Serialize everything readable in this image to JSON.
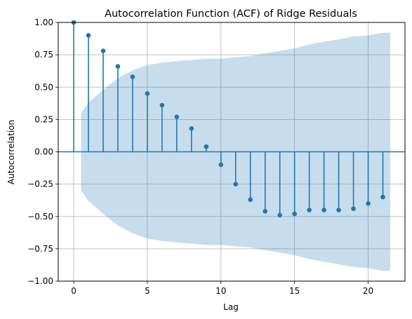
{
  "chart_data": {
    "type": "stem",
    "title": "Autocorrelation Function (ACF) of Ridge Residuals",
    "xlabel": "Lag",
    "ylabel": "Autocorrelation",
    "xlim": [
      -1.05,
      22.5
    ],
    "ylim": [
      -1.0,
      1.0
    ],
    "xticks": [
      0,
      5,
      10,
      15,
      20
    ],
    "yticks": [
      -1.0,
      -0.75,
      -0.5,
      -0.25,
      0.0,
      0.25,
      0.5,
      0.75,
      1.0
    ],
    "ytick_labels": [
      "−1.00",
      "−0.75",
      "−0.50",
      "−0.25",
      "0.00",
      "0.25",
      "0.50",
      "0.75",
      "1.00"
    ],
    "xtick_labels": [
      "0",
      "5",
      "10",
      "15",
      "20"
    ],
    "grid": true,
    "colors": {
      "stem": "#1f77b4",
      "band": "#1f77b4",
      "band_opacity": 0.25,
      "grid": "#b0b0b0"
    },
    "series": [
      {
        "lags": [
          0,
          1,
          2,
          3,
          4,
          5,
          6,
          7,
          8,
          9,
          10,
          11,
          12,
          13,
          14,
          15,
          16,
          17,
          18,
          19,
          20,
          21
        ],
        "values": [
          1.0,
          0.9,
          0.78,
          0.66,
          0.58,
          0.45,
          0.36,
          0.27,
          0.18,
          0.04,
          -0.1,
          -0.25,
          -0.37,
          -0.46,
          -0.49,
          -0.48,
          -0.45,
          -0.45,
          -0.45,
          -0.44,
          -0.4,
          -0.35
        ]
      }
    ],
    "confidence_band": {
      "x": [
        0.5,
        1,
        2,
        3,
        4,
        5,
        6,
        7,
        8,
        9,
        10,
        11,
        12,
        13,
        14,
        15,
        16,
        17,
        18,
        19,
        20,
        21,
        21.5
      ],
      "upper": [
        0.3,
        0.38,
        0.48,
        0.57,
        0.63,
        0.67,
        0.69,
        0.7,
        0.71,
        0.72,
        0.72,
        0.73,
        0.74,
        0.76,
        0.78,
        0.8,
        0.83,
        0.85,
        0.87,
        0.89,
        0.9,
        0.92,
        0.92
      ],
      "lower": [
        -0.3,
        -0.38,
        -0.48,
        -0.57,
        -0.63,
        -0.67,
        -0.69,
        -0.7,
        -0.71,
        -0.72,
        -0.72,
        -0.73,
        -0.74,
        -0.76,
        -0.78,
        -0.8,
        -0.83,
        -0.85,
        -0.87,
        -0.89,
        -0.9,
        -0.92,
        -0.92
      ]
    }
  }
}
